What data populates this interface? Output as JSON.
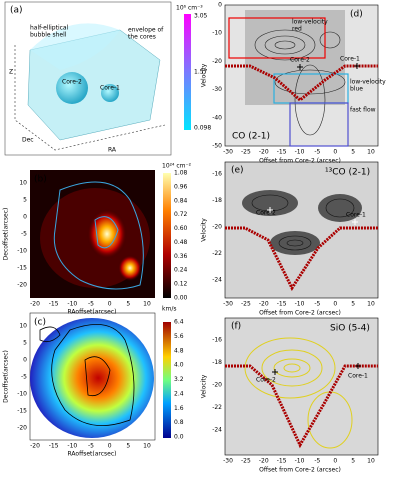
{
  "panel_a": {
    "label": "(a)",
    "shell": [
      "half-elliptical",
      "bubble shell"
    ],
    "envelope": [
      "envelope of",
      "the cores"
    ],
    "core2": "Core-2",
    "core1": "Core-1",
    "axis_z": "Z",
    "axis_dec": "Dec",
    "axis_ra": "RA",
    "colorbar_unit": "10⁶ cm⁻³",
    "colorbar_ticks": [
      "3.05",
      "1.57",
      "0.098"
    ]
  },
  "panel_b": {
    "label": "(b)",
    "x_label": "RAoffset(arcsec)",
    "y_label": "Decoffset(arcsec)",
    "x_ticks": [
      "-20",
      "-15",
      "-10",
      "-5",
      "0",
      "5",
      "10"
    ],
    "y_ticks": [
      "10",
      "5",
      "0",
      "-5",
      "-10",
      "-15",
      "-20"
    ],
    "colorbar_unit": "10²⁴ cm⁻²",
    "colorbar_ticks": [
      "1.08",
      "0.96",
      "0.84",
      "0.72",
      "0.60",
      "0.48",
      "0.36",
      "0.24",
      "0.12",
      "0.00"
    ]
  },
  "panel_c": {
    "label": "(c)",
    "x_label": "RAoffset(arcsec)",
    "y_label": "Decoffset(arcsec)",
    "x_ticks": [
      "-20",
      "-15",
      "-10",
      "-5",
      "0",
      "5",
      "10"
    ],
    "y_ticks": [
      "10",
      "5",
      "0",
      "-5",
      "-10",
      "-15",
      "-20"
    ],
    "colorbar_unit": "km/s",
    "colorbar_ticks": [
      "6.4",
      "5.6",
      "4.8",
      "4.0",
      "3.2",
      "2.4",
      "1.6",
      "0.8",
      "0.0"
    ]
  },
  "panel_d": {
    "label": "(d)",
    "line": "CO (2-1)",
    "x_label": "Offset from Core-2 (arcsec)",
    "y_label": "Velocity",
    "x_ticks": [
      "-30",
      "-25",
      "-20",
      "-15",
      "-10",
      "-5",
      "0",
      "5",
      "10"
    ],
    "y_ticks": [
      "0",
      "-10",
      "-20",
      "-30",
      "-40",
      "-50"
    ],
    "core2": "Core-2",
    "core1": "Core-1",
    "red_box": [
      "low-velocity",
      "red"
    ],
    "blue_box": [
      "low-velocity",
      "blue"
    ],
    "fast_box": "fast flow"
  },
  "panel_e": {
    "label": "(e)",
    "line": "¹³CO (2-1)",
    "x_label": "Offset from Core-2 (arcsec)",
    "y_label": "Velocity",
    "x_ticks": [
      "-30",
      "-25",
      "-20",
      "-15",
      "-10",
      "-5",
      "0",
      "5",
      "10"
    ],
    "y_ticks": [
      "-16",
      "-18",
      "-20",
      "-22",
      "-24"
    ],
    "core2": "Core-2",
    "core1": "Core-1"
  },
  "panel_f": {
    "label": "(f)",
    "line": "SiO (5-4)",
    "x_label": "Offset from Core-2 (arcsec)",
    "y_label": "Velocity",
    "x_ticks": [
      "-30",
      "-25",
      "-20",
      "-15",
      "-10",
      "-5",
      "0",
      "5",
      "10"
    ],
    "y_ticks": [
      "-16",
      "-18",
      "-20",
      "-22",
      "-24"
    ],
    "core2": "Core-2",
    "core1": "Core-1"
  }
}
